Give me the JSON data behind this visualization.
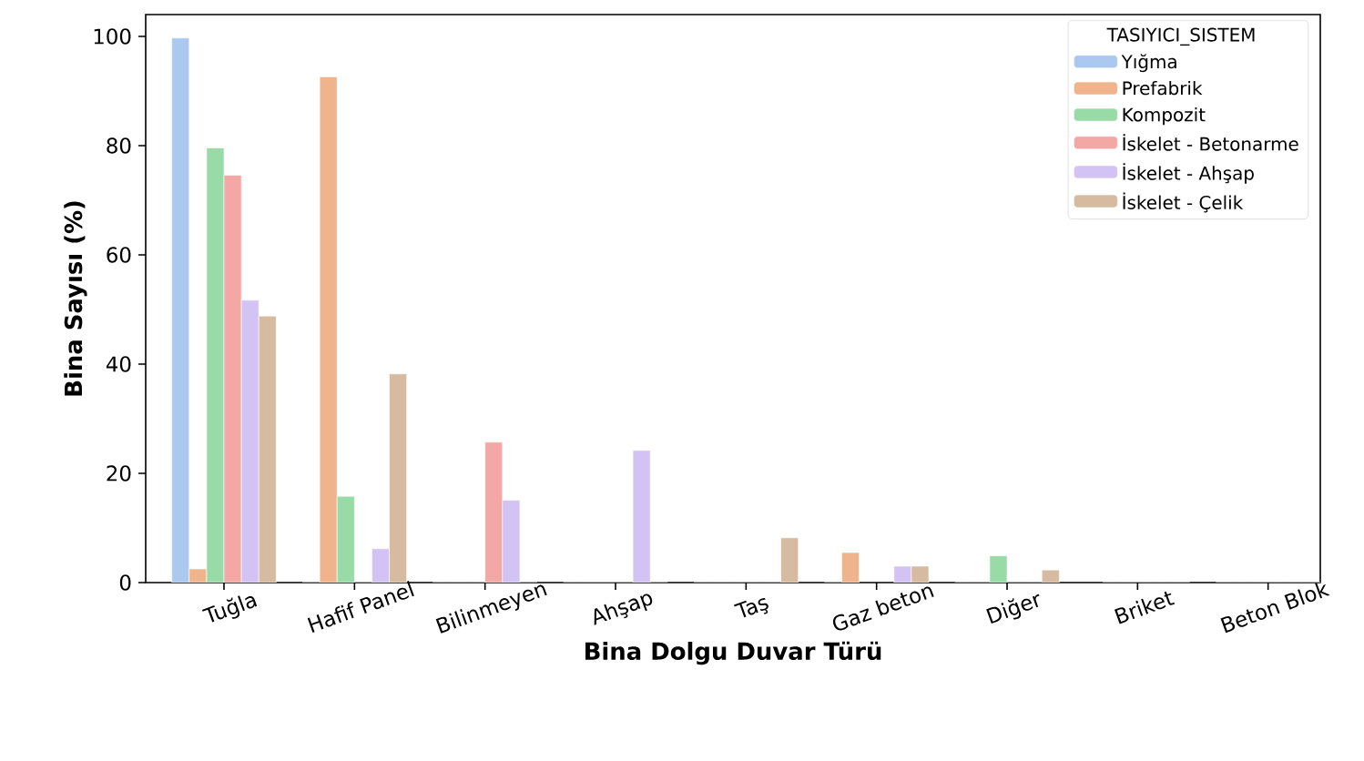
{
  "chart_data": {
    "type": "bar",
    "xlabel": "Bina Dolgu Duvar Türü",
    "ylabel": "Bina Sayısı (%)",
    "legend_title": "TASIYICI_SISTEM",
    "legend": "top right",
    "categories": [
      "Tuğla",
      "Hafif Panel",
      "Bilinmeyen",
      "Ahşap",
      "Taş",
      "Gaz beton",
      "Diğer",
      "Briket",
      "Beton Blok"
    ],
    "ylim": [
      0,
      104
    ],
    "yticks": [
      0,
      20,
      40,
      60,
      80,
      100
    ],
    "series": [
      {
        "name": "Yığma",
        "color": "#abc9ee",
        "values": [
          99.7,
          0,
          0,
          0,
          0,
          0,
          0,
          null,
          0
        ]
      },
      {
        "name": "Prefabrik",
        "color": "#f0b48c",
        "values": [
          2.5,
          92.6,
          0,
          0,
          0,
          5.5,
          0,
          0,
          0
        ]
      },
      {
        "name": "Kompozit",
        "color": "#98dba6",
        "values": [
          79.6,
          15.8,
          0,
          0,
          0,
          null,
          4.9,
          0,
          0
        ]
      },
      {
        "name": "İskelet - Betonarme",
        "color": "#f3a8a5",
        "values": [
          74.6,
          0,
          25.7,
          0,
          0,
          null,
          0,
          0,
          0
        ]
      },
      {
        "name": "İskelet - Ahşap",
        "color": "#d3c3f5",
        "values": [
          51.7,
          6.2,
          15.1,
          24.2,
          0,
          3.0,
          0,
          0,
          0
        ]
      },
      {
        "name": "İskelet - Çelik",
        "color": "#d6bba0",
        "values": [
          48.8,
          38.2,
          0,
          0,
          8.2,
          3.0,
          2.3,
          0,
          0
        ]
      }
    ]
  }
}
